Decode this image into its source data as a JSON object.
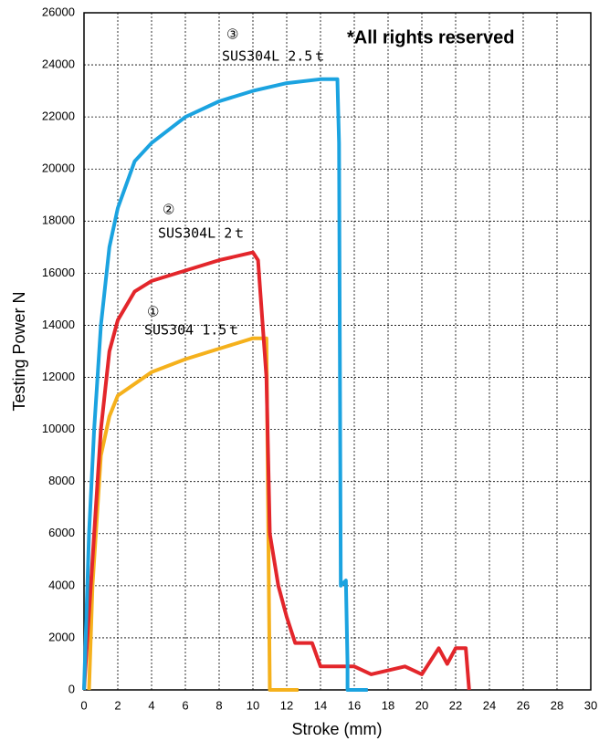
{
  "chart_data": {
    "type": "line",
    "ylabel": "Testing Power N",
    "xlabel": "Stroke (mm)",
    "annotations": [
      "③",
      "SUS304L 2.5ｔ",
      "②",
      "SUS304L 2ｔ",
      "①",
      "SUS304 1.5ｔ",
      "*All rights reserved"
    ],
    "xlim": [
      0,
      30
    ],
    "xticks": [
      0,
      2,
      4,
      6,
      8,
      10,
      12,
      14,
      16,
      18,
      20,
      22,
      24,
      26,
      28,
      30
    ],
    "ylim": [
      0,
      26000
    ],
    "yticks": [
      0,
      2000,
      4000,
      6000,
      8000,
      10000,
      12000,
      14000,
      16000,
      18000,
      20000,
      22000,
      24000,
      26000
    ],
    "grid": true,
    "series": [
      {
        "color": "#f5b11c",
        "x": [
          0.3,
          0.5,
          1,
          1.5,
          2,
          4,
          6,
          8,
          10,
          10.8,
          11,
          12.7
        ],
        "values": [
          0,
          4000,
          9000,
          10500,
          11300,
          12200,
          12700,
          13100,
          13500,
          13500,
          0,
          0
        ]
      },
      {
        "color": "#e3262b",
        "x": [
          0,
          0.5,
          1,
          1.5,
          2,
          3,
          4,
          6,
          8,
          10,
          10.3,
          10.8,
          11,
          11.5,
          12,
          12.5,
          13.5,
          14,
          16,
          17,
          19,
          20,
          21,
          21.5,
          22,
          22.6,
          22.8
        ],
        "values": [
          0,
          5000,
          10000,
          13000,
          14200,
          15300,
          15700,
          16100,
          16500,
          16800,
          16500,
          12000,
          6000,
          4000,
          2800,
          1800,
          1800,
          900,
          900,
          600,
          900,
          600,
          1600,
          1000,
          1600,
          1600,
          0
        ]
      },
      {
        "color": "#1ba3e0",
        "x": [
          0,
          0.3,
          0.6,
          1,
          1.5,
          2,
          3,
          4,
          6,
          8,
          10,
          12,
          14,
          15,
          15.1,
          15.2,
          15.5,
          15.6,
          15.6,
          16.8
        ],
        "values": [
          0,
          6000,
          10000,
          14000,
          17000,
          18500,
          20300,
          21000,
          22000,
          22600,
          23000,
          23300,
          23450,
          23450,
          21000,
          4000,
          4200,
          1000,
          0,
          0
        ]
      }
    ]
  }
}
